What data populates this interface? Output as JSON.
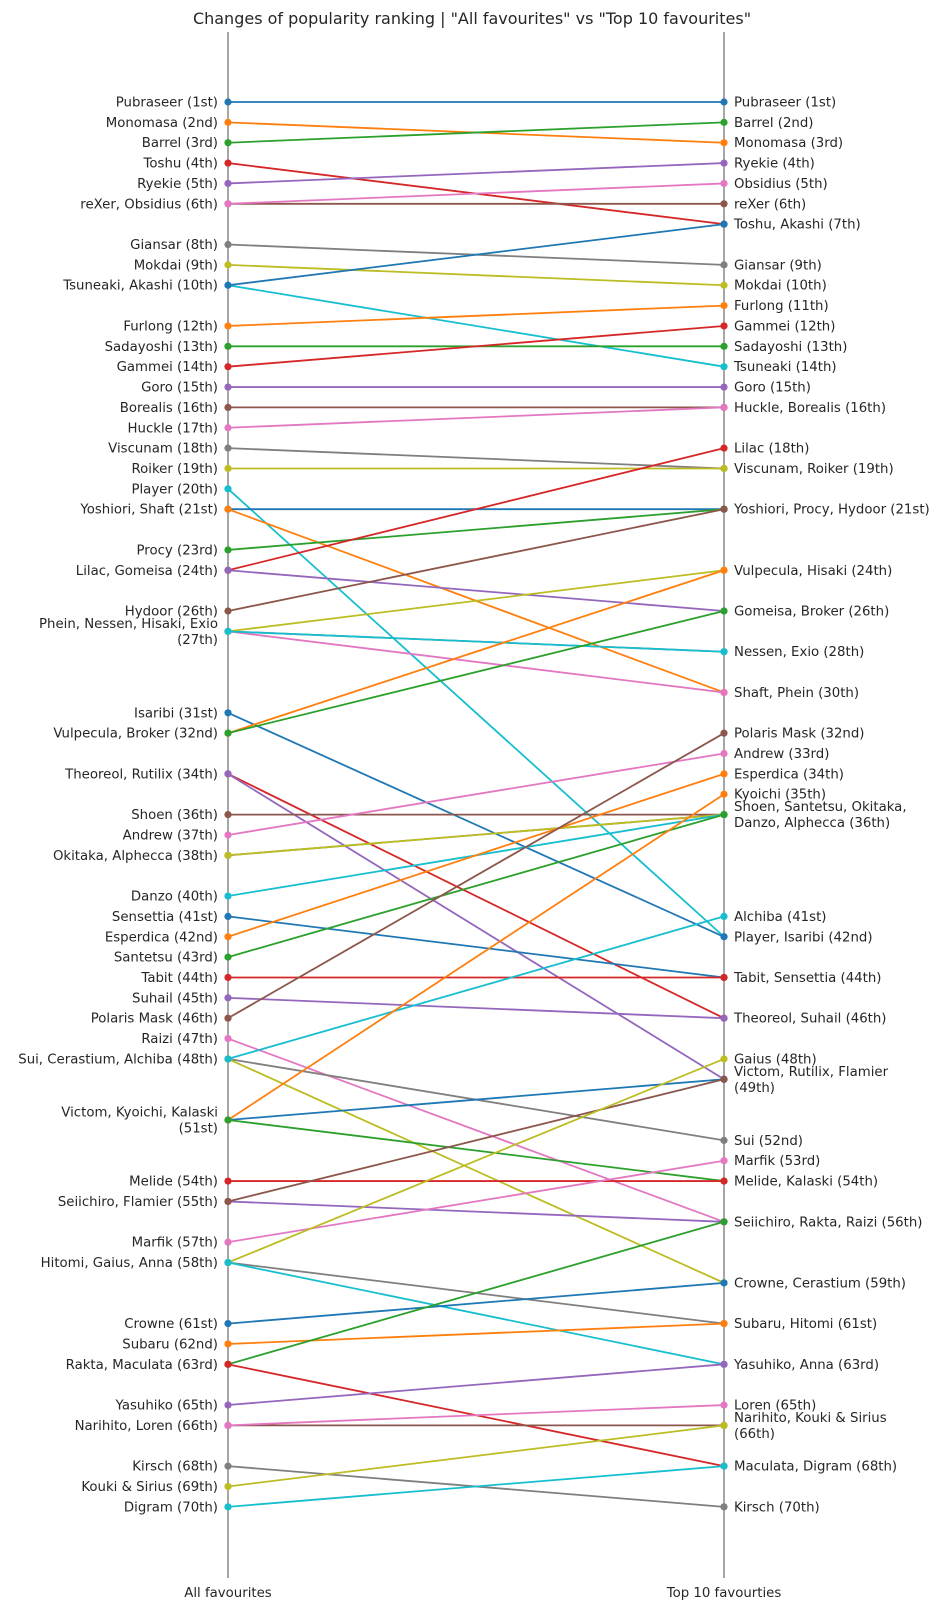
{
  "chart_data": {
    "type": "line",
    "title": "Changes of popularity ranking | \"All favourites\" vs \"Top 10 favourites\"",
    "x": [
      "All favourites",
      "Top 10 favourties"
    ],
    "ylim": [
      -2,
      75
    ],
    "y_inverted": true,
    "grid": false,
    "palette": [
      "#1f77b4",
      "#ff7f0e",
      "#2ca02c",
      "#d62728",
      "#9467bd",
      "#8c564b",
      "#e377c2",
      "#7f7f7f",
      "#bcbd22",
      "#17becf"
    ],
    "series": [
      {
        "name": "Pubraseer",
        "values": [
          1,
          1
        ]
      },
      {
        "name": "Monomasa",
        "values": [
          2,
          3
        ]
      },
      {
        "name": "Barrel",
        "values": [
          3,
          2
        ]
      },
      {
        "name": "Toshu",
        "values": [
          4,
          7
        ]
      },
      {
        "name": "Ryekie",
        "values": [
          5,
          4
        ]
      },
      {
        "name": "reXer",
        "values": [
          6,
          6
        ]
      },
      {
        "name": "Obsidius",
        "values": [
          6,
          5
        ]
      },
      {
        "name": "Giansar",
        "values": [
          8,
          9
        ]
      },
      {
        "name": "Mokdai",
        "values": [
          9,
          10
        ]
      },
      {
        "name": "Tsuneaki",
        "values": [
          10,
          14
        ]
      },
      {
        "name": "Akashi",
        "values": [
          10,
          7
        ]
      },
      {
        "name": "Furlong",
        "values": [
          12,
          11
        ]
      },
      {
        "name": "Sadayoshi",
        "values": [
          13,
          13
        ]
      },
      {
        "name": "Gammei",
        "values": [
          14,
          12
        ]
      },
      {
        "name": "Goro",
        "values": [
          15,
          15
        ]
      },
      {
        "name": "Borealis",
        "values": [
          16,
          16
        ]
      },
      {
        "name": "Huckle",
        "values": [
          17,
          16
        ]
      },
      {
        "name": "Viscunam",
        "values": [
          18,
          19
        ]
      },
      {
        "name": "Roiker",
        "values": [
          19,
          19
        ]
      },
      {
        "name": "Player",
        "values": [
          20,
          42
        ]
      },
      {
        "name": "Yoshiori",
        "values": [
          21,
          21
        ]
      },
      {
        "name": "Shaft",
        "values": [
          21,
          30
        ]
      },
      {
        "name": "Procy",
        "values": [
          23,
          21
        ]
      },
      {
        "name": "Lilac",
        "values": [
          24,
          18
        ]
      },
      {
        "name": "Gomeisa",
        "values": [
          24,
          26
        ]
      },
      {
        "name": "Hydoor",
        "values": [
          26,
          21
        ]
      },
      {
        "name": "Phein",
        "values": [
          27,
          30
        ]
      },
      {
        "name": "Nessen",
        "values": [
          27,
          28
        ]
      },
      {
        "name": "Hisaki",
        "values": [
          27,
          24
        ]
      },
      {
        "name": "Exio",
        "values": [
          27,
          28
        ]
      },
      {
        "name": "Isaribi",
        "values": [
          31,
          42
        ]
      },
      {
        "name": "Vulpecula",
        "values": [
          32,
          24
        ]
      },
      {
        "name": "Broker",
        "values": [
          32,
          26
        ]
      },
      {
        "name": "Theoreol",
        "values": [
          34,
          46
        ]
      },
      {
        "name": "Rutilix",
        "values": [
          34,
          49
        ]
      },
      {
        "name": "Shoen",
        "values": [
          36,
          36
        ]
      },
      {
        "name": "Andrew",
        "values": [
          37,
          33
        ]
      },
      {
        "name": "Okitaka",
        "values": [
          38,
          36
        ]
      },
      {
        "name": "Alphecca",
        "values": [
          38,
          36
        ]
      },
      {
        "name": "Danzo",
        "values": [
          40,
          36
        ]
      },
      {
        "name": "Sensettia",
        "values": [
          41,
          44
        ]
      },
      {
        "name": "Esperdica",
        "values": [
          42,
          34
        ]
      },
      {
        "name": "Santetsu",
        "values": [
          43,
          36
        ]
      },
      {
        "name": "Tabit",
        "values": [
          44,
          44
        ]
      },
      {
        "name": "Suhail",
        "values": [
          45,
          46
        ]
      },
      {
        "name": "Polaris Mask",
        "values": [
          46,
          32
        ]
      },
      {
        "name": "Raizi",
        "values": [
          47,
          56
        ]
      },
      {
        "name": "Sui",
        "values": [
          48,
          52
        ]
      },
      {
        "name": "Cerastium",
        "values": [
          48,
          59
        ]
      },
      {
        "name": "Alchiba",
        "values": [
          48,
          41
        ]
      },
      {
        "name": "Victom",
        "values": [
          51,
          49
        ]
      },
      {
        "name": "Kyoichi",
        "values": [
          51,
          35
        ]
      },
      {
        "name": "Kalaski",
        "values": [
          51,
          54
        ]
      },
      {
        "name": "Melide",
        "values": [
          54,
          54
        ]
      },
      {
        "name": "Seiichiro",
        "values": [
          55,
          56
        ]
      },
      {
        "name": "Flamier",
        "values": [
          55,
          49
        ]
      },
      {
        "name": "Marfik",
        "values": [
          57,
          53
        ]
      },
      {
        "name": "Hitomi",
        "values": [
          58,
          61
        ]
      },
      {
        "name": "Gaius",
        "values": [
          58,
          48
        ]
      },
      {
        "name": "Anna",
        "values": [
          58,
          63
        ]
      },
      {
        "name": "Crowne",
        "values": [
          61,
          59
        ]
      },
      {
        "name": "Subaru",
        "values": [
          62,
          61
        ]
      },
      {
        "name": "Rakta",
        "values": [
          63,
          56
        ]
      },
      {
        "name": "Maculata",
        "values": [
          63,
          68
        ]
      },
      {
        "name": "Yasuhiko",
        "values": [
          65,
          63
        ]
      },
      {
        "name": "Narihito",
        "values": [
          66,
          66
        ]
      },
      {
        "name": "Loren",
        "values": [
          66,
          65
        ]
      },
      {
        "name": "Kirsch",
        "values": [
          68,
          70
        ]
      },
      {
        "name": "Kouki & Sirius",
        "values": [
          69,
          66
        ]
      },
      {
        "name": "Digram",
        "values": [
          70,
          68
        ]
      }
    ],
    "left_labels": [
      {
        "rank": 1,
        "lines": [
          "Pubraseer (1st)"
        ]
      },
      {
        "rank": 2,
        "lines": [
          "Monomasa (2nd)"
        ]
      },
      {
        "rank": 3,
        "lines": [
          "Barrel (3rd)"
        ]
      },
      {
        "rank": 4,
        "lines": [
          "Toshu (4th)"
        ]
      },
      {
        "rank": 5,
        "lines": [
          "Ryekie (5th)"
        ]
      },
      {
        "rank": 6,
        "lines": [
          "reXer, Obsidius (6th)"
        ]
      },
      {
        "rank": 8,
        "lines": [
          "Giansar (8th)"
        ]
      },
      {
        "rank": 9,
        "lines": [
          "Mokdai (9th)"
        ]
      },
      {
        "rank": 10,
        "lines": [
          "Tsuneaki, Akashi (10th)"
        ]
      },
      {
        "rank": 12,
        "lines": [
          "Furlong (12th)"
        ]
      },
      {
        "rank": 13,
        "lines": [
          "Sadayoshi (13th)"
        ]
      },
      {
        "rank": 14,
        "lines": [
          "Gammei (14th)"
        ]
      },
      {
        "rank": 15,
        "lines": [
          "Goro (15th)"
        ]
      },
      {
        "rank": 16,
        "lines": [
          "Borealis (16th)"
        ]
      },
      {
        "rank": 17,
        "lines": [
          "Huckle (17th)"
        ]
      },
      {
        "rank": 18,
        "lines": [
          "Viscunam (18th)"
        ]
      },
      {
        "rank": 19,
        "lines": [
          "Roiker (19th)"
        ]
      },
      {
        "rank": 20,
        "lines": [
          "Player (20th)"
        ]
      },
      {
        "rank": 21,
        "lines": [
          "Yoshiori, Shaft (21st)"
        ]
      },
      {
        "rank": 23,
        "lines": [
          "Procy (23rd)"
        ]
      },
      {
        "rank": 24,
        "lines": [
          "Lilac, Gomeisa (24th)"
        ]
      },
      {
        "rank": 26,
        "lines": [
          "Hydoor (26th)"
        ]
      },
      {
        "rank": 27,
        "lines": [
          "Phein, Nessen, Hisaki, Exio",
          "(27th)"
        ]
      },
      {
        "rank": 31,
        "lines": [
          "Isaribi (31st)"
        ]
      },
      {
        "rank": 32,
        "lines": [
          "Vulpecula, Broker (32nd)"
        ]
      },
      {
        "rank": 34,
        "lines": [
          "Theoreol, Rutilix (34th)"
        ]
      },
      {
        "rank": 36,
        "lines": [
          "Shoen (36th)"
        ]
      },
      {
        "rank": 37,
        "lines": [
          "Andrew (37th)"
        ]
      },
      {
        "rank": 38,
        "lines": [
          "Okitaka, Alphecca (38th)"
        ]
      },
      {
        "rank": 40,
        "lines": [
          "Danzo (40th)"
        ]
      },
      {
        "rank": 41,
        "lines": [
          "Sensettia (41st)"
        ]
      },
      {
        "rank": 42,
        "lines": [
          "Esperdica (42nd)"
        ]
      },
      {
        "rank": 43,
        "lines": [
          "Santetsu (43rd)"
        ]
      },
      {
        "rank": 44,
        "lines": [
          "Tabit (44th)"
        ]
      },
      {
        "rank": 45,
        "lines": [
          "Suhail (45th)"
        ]
      },
      {
        "rank": 46,
        "lines": [
          "Polaris Mask (46th)"
        ]
      },
      {
        "rank": 47,
        "lines": [
          "Raizi (47th)"
        ]
      },
      {
        "rank": 48,
        "lines": [
          "Sui, Cerastium, Alchiba (48th)"
        ]
      },
      {
        "rank": 51,
        "lines": [
          "Victom, Kyoichi, Kalaski",
          "(51st)"
        ]
      },
      {
        "rank": 54,
        "lines": [
          "Melide (54th)"
        ]
      },
      {
        "rank": 55,
        "lines": [
          "Seiichiro, Flamier (55th)"
        ]
      },
      {
        "rank": 57,
        "lines": [
          "Marfik (57th)"
        ]
      },
      {
        "rank": 58,
        "lines": [
          "Hitomi, Gaius, Anna (58th)"
        ]
      },
      {
        "rank": 61,
        "lines": [
          "Crowne (61st)"
        ]
      },
      {
        "rank": 62,
        "lines": [
          "Subaru (62nd)"
        ]
      },
      {
        "rank": 63,
        "lines": [
          "Rakta, Maculata (63rd)"
        ]
      },
      {
        "rank": 65,
        "lines": [
          "Yasuhiko (65th)"
        ]
      },
      {
        "rank": 66,
        "lines": [
          "Narihito, Loren (66th)"
        ]
      },
      {
        "rank": 68,
        "lines": [
          "Kirsch (68th)"
        ]
      },
      {
        "rank": 69,
        "lines": [
          "Kouki & Sirius (69th)"
        ]
      },
      {
        "rank": 70,
        "lines": [
          "Digram (70th)"
        ]
      }
    ],
    "right_labels": [
      {
        "rank": 1,
        "lines": [
          "Pubraseer (1st)"
        ]
      },
      {
        "rank": 2,
        "lines": [
          "Barrel (2nd)"
        ]
      },
      {
        "rank": 3,
        "lines": [
          "Monomasa (3rd)"
        ]
      },
      {
        "rank": 4,
        "lines": [
          "Ryekie (4th)"
        ]
      },
      {
        "rank": 5,
        "lines": [
          "Obsidius (5th)"
        ]
      },
      {
        "rank": 6,
        "lines": [
          "reXer (6th)"
        ]
      },
      {
        "rank": 7,
        "lines": [
          "Toshu, Akashi (7th)"
        ]
      },
      {
        "rank": 9,
        "lines": [
          "Giansar (9th)"
        ]
      },
      {
        "rank": 10,
        "lines": [
          "Mokdai (10th)"
        ]
      },
      {
        "rank": 11,
        "lines": [
          "Furlong (11th)"
        ]
      },
      {
        "rank": 12,
        "lines": [
          "Gammei (12th)"
        ]
      },
      {
        "rank": 13,
        "lines": [
          "Sadayoshi (13th)"
        ]
      },
      {
        "rank": 14,
        "lines": [
          "Tsuneaki (14th)"
        ]
      },
      {
        "rank": 15,
        "lines": [
          "Goro (15th)"
        ]
      },
      {
        "rank": 16,
        "lines": [
          "Huckle, Borealis (16th)"
        ]
      },
      {
        "rank": 18,
        "lines": [
          "Lilac (18th)"
        ]
      },
      {
        "rank": 19,
        "lines": [
          "Viscunam, Roiker (19th)"
        ]
      },
      {
        "rank": 21,
        "lines": [
          "Yoshiori, Procy, Hydoor (21st)"
        ]
      },
      {
        "rank": 24,
        "lines": [
          "Vulpecula, Hisaki (24th)"
        ]
      },
      {
        "rank": 26,
        "lines": [
          "Gomeisa, Broker (26th)"
        ]
      },
      {
        "rank": 28,
        "lines": [
          "Nessen, Exio (28th)"
        ]
      },
      {
        "rank": 30,
        "lines": [
          "Shaft, Phein (30th)"
        ]
      },
      {
        "rank": 32,
        "lines": [
          "Polaris Mask (32nd)"
        ]
      },
      {
        "rank": 33,
        "lines": [
          "Andrew (33rd)"
        ]
      },
      {
        "rank": 34,
        "lines": [
          "Esperdica (34th)"
        ]
      },
      {
        "rank": 35,
        "lines": [
          "Kyoichi (35th)"
        ]
      },
      {
        "rank": 36,
        "lines": [
          "Shoen, Santetsu, Okitaka,",
          "Danzo, Alphecca (36th)"
        ]
      },
      {
        "rank": 41,
        "lines": [
          "Alchiba (41st)"
        ]
      },
      {
        "rank": 42,
        "lines": [
          "Player, Isaribi (42nd)"
        ]
      },
      {
        "rank": 44,
        "lines": [
          "Tabit, Sensettia (44th)"
        ]
      },
      {
        "rank": 46,
        "lines": [
          "Theoreol, Suhail (46th)"
        ]
      },
      {
        "rank": 48,
        "lines": [
          "Gaius (48th)"
        ]
      },
      {
        "rank": 49,
        "lines": [
          "Victom, Rutilix, Flamier",
          "(49th)"
        ]
      },
      {
        "rank": 52,
        "lines": [
          "Sui (52nd)"
        ]
      },
      {
        "rank": 53,
        "lines": [
          "Marfik (53rd)"
        ]
      },
      {
        "rank": 54,
        "lines": [
          "Melide, Kalaski (54th)"
        ]
      },
      {
        "rank": 56,
        "lines": [
          "Seiichiro, Rakta, Raizi (56th)"
        ]
      },
      {
        "rank": 59,
        "lines": [
          "Crowne, Cerastium (59th)"
        ]
      },
      {
        "rank": 61,
        "lines": [
          "Subaru, Hitomi (61st)"
        ]
      },
      {
        "rank": 63,
        "lines": [
          "Yasuhiko, Anna (63rd)"
        ]
      },
      {
        "rank": 65,
        "lines": [
          "Loren (65th)"
        ]
      },
      {
        "rank": 66,
        "lines": [
          "Narihito, Kouki & Sirius",
          "(66th)"
        ]
      },
      {
        "rank": 68,
        "lines": [
          "Maculata, Digram (68th)"
        ]
      },
      {
        "rank": 70,
        "lines": [
          "Kirsch (70th)"
        ]
      }
    ]
  }
}
